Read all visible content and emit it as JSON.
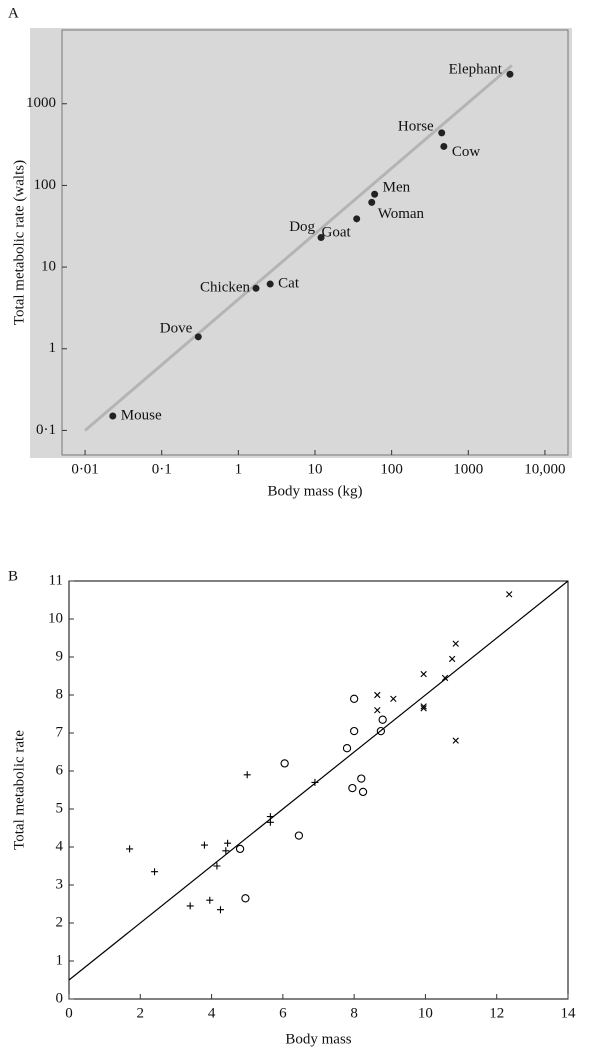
{
  "chart_data": [
    {
      "type": "scatter",
      "panel": "A",
      "xlabel": "Body mass (kg)",
      "ylabel": "Total metabolic rate (walts)",
      "log_x": true,
      "log_y": true,
      "background": "#d8d8d8",
      "color": "#222222",
      "xlim": [
        0.005,
        20000
      ],
      "ylim": [
        0.05,
        8000
      ],
      "xticks": [
        {
          "value": 0.01,
          "label": "0·01"
        },
        {
          "value": 0.1,
          "label": "0·1"
        },
        1,
        10,
        100,
        1000,
        {
          "value": 10000,
          "label": "10,000"
        }
      ],
      "yticks": [
        {
          "value": 0.1,
          "label": "0·1"
        },
        1,
        10,
        100,
        1000
      ],
      "point_labels": [
        "Mouse",
        "Dove",
        "Chicken",
        "Cat",
        "Dog",
        "Goat",
        "Woman",
        "Men",
        "Horse",
        "Cow",
        "Elephant"
      ],
      "x": [
        0.023,
        0.3,
        1.7,
        2.6,
        12,
        35,
        55,
        60,
        450,
        480,
        3500
      ],
      "y": [
        0.15,
        1.4,
        5.5,
        6.2,
        23,
        39,
        62,
        78,
        440,
        300,
        2300
      ],
      "line": {
        "color": "#b4b4b4",
        "x": [
          0.01,
          3700
        ],
        "y": [
          0.1,
          2950
        ]
      }
    },
    {
      "type": "scatter",
      "panel": "B",
      "xlabel": "Body mass",
      "ylabel": "Total metabolic rate",
      "log_x": false,
      "log_y": false,
      "background": "#ffffff",
      "color": "#000000",
      "xlim": [
        0,
        14
      ],
      "ylim": [
        0,
        11
      ],
      "xticks": [
        0,
        2,
        4,
        6,
        8,
        10,
        12,
        14
      ],
      "yticks": [
        0,
        1,
        2,
        3,
        4,
        5,
        6,
        7,
        8,
        9,
        10,
        11
      ],
      "series": [
        {
          "marker": "+",
          "x": [
            1.7,
            2.4,
            3.4,
            3.8,
            3.95,
            4.15,
            4.25,
            4.4,
            4.45,
            5.0,
            5.65,
            5.65,
            6.9
          ],
          "y": [
            3.95,
            3.35,
            2.45,
            4.05,
            2.6,
            3.5,
            2.35,
            3.9,
            4.1,
            5.9,
            4.65,
            4.8,
            5.7
          ]
        },
        {
          "marker": "x",
          "x": [
            8.65,
            8.65,
            9.1,
            9.95,
            9.95,
            9.95,
            10.55,
            10.75,
            10.85,
            10.85,
            12.35
          ],
          "y": [
            8.0,
            7.6,
            7.9,
            7.65,
            7.7,
            8.55,
            8.45,
            8.95,
            9.35,
            6.8,
            10.65
          ]
        },
        {
          "marker": "o",
          "x": [
            4.8,
            4.95,
            6.05,
            6.45,
            7.8,
            7.95,
            8.0,
            8.0,
            8.2,
            8.25,
            8.75,
            8.8
          ],
          "y": [
            3.95,
            2.65,
            6.2,
            4.3,
            6.6,
            5.55,
            7.9,
            7.05,
            5.8,
            5.45,
            7.05,
            7.35
          ]
        }
      ],
      "line": {
        "color": "#000000",
        "x": [
          0,
          14
        ],
        "y": [
          0.5,
          11
        ]
      }
    }
  ]
}
